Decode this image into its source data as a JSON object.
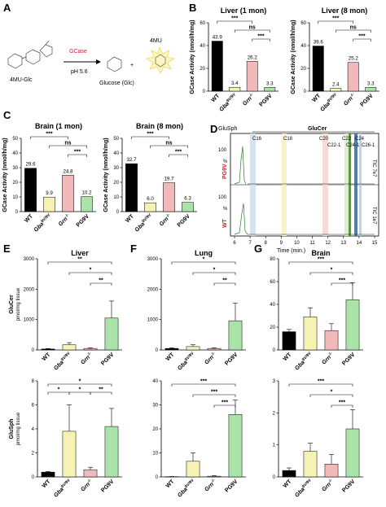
{
  "panels": {
    "A": {
      "letter": "A",
      "substrate": "4MU-Glc",
      "enzyme": "GCase",
      "condition": "pH 5.6",
      "product_glc": "Glucose (Glc)",
      "plus": "+",
      "product_4mu": "4MU"
    },
    "B": {
      "letter": "B"
    },
    "C": {
      "letter": "C"
    },
    "D": {
      "letter": "D",
      "header": "GluCer",
      "left_header": "GluSph",
      "row1_label": "PG9V",
      "row2_label": "WT",
      "ylabel_top": "100",
      "ylabel_bot": "100",
      "pct": "%",
      "tic1": "TIC 7e7",
      "tic2": "TIC 1e7",
      "xlabel": "Time (min.)",
      "peaks": [
        "C16",
        "C18",
        "C20",
        "C22-1",
        "C22",
        "C24-1",
        "C24",
        "C26-1"
      ],
      "ticks": [
        "6",
        "7",
        "8",
        "9",
        "10",
        "11",
        "12",
        "13",
        "14",
        "15"
      ]
    },
    "E": {
      "letter": "E"
    },
    "F": {
      "letter": "F"
    },
    "G": {
      "letter": "G"
    }
  },
  "colors": {
    "WT": "#000000",
    "GBA": "#f6f2b3",
    "GRN": "#f1b9b9",
    "PG9V": "#a9e3a7",
    "PG9V_text": "#d42020",
    "ann": "#111111"
  },
  "chart_data": [
    {
      "id": "B1",
      "type": "bar",
      "title": "Liver (1 mon)",
      "ylabel": "GCase Activity (nmol/h/mg)",
      "categories": [
        "WT",
        "Gba",
        "Grn",
        "PG9V"
      ],
      "values": [
        43.9,
        3.4,
        26.2,
        3.3
      ],
      "value_labels": [
        "43.9",
        "3.4",
        "26.2",
        "3.3"
      ],
      "ylim": [
        0,
        60
      ],
      "yticks": [
        "0",
        "20",
        "40",
        "60"
      ],
      "signif": [
        "***",
        "ns",
        "***"
      ]
    },
    {
      "id": "B2",
      "type": "bar",
      "title": "Liver (8 mon)",
      "ylabel": "GCase Activity (nmol/h/mg)",
      "categories": [
        "WT",
        "Gba",
        "Grn",
        "PG9V"
      ],
      "values": [
        39.6,
        2.4,
        25.2,
        3.3
      ],
      "value_labels": [
        "39.6",
        "2.4",
        "25.2",
        "3.3"
      ],
      "ylim": [
        0,
        60
      ],
      "yticks": [
        "0",
        "20",
        "40",
        "60"
      ],
      "signif": [
        "***",
        "ns",
        "***"
      ]
    },
    {
      "id": "C1",
      "type": "bar",
      "title": "Brain (1 mon)",
      "ylabel": "GCase Activity (nmol/h/mg)",
      "categories": [
        "WT",
        "Gba",
        "Grn",
        "PG9V"
      ],
      "values": [
        29.6,
        9.9,
        24.8,
        10.2
      ],
      "value_labels": [
        "29.6",
        "9.9",
        "24.8",
        "10.2"
      ],
      "ylim": [
        0,
        50
      ],
      "yticks": [
        "0",
        "10",
        "20",
        "30",
        "40",
        "50"
      ],
      "signif": [
        "***",
        "ns",
        "***"
      ]
    },
    {
      "id": "C2",
      "type": "bar",
      "title": "Brain (8 mon)",
      "ylabel": "GCase Activity (nmol/h/mg)",
      "categories": [
        "WT",
        "Gba",
        "Grn",
        "PG9V"
      ],
      "values": [
        32.7,
        6.0,
        19.7,
        6.3
      ],
      "value_labels": [
        "32.7",
        "6.0",
        "19.7",
        "6.3"
      ],
      "ylim": [
        0,
        50
      ],
      "yticks": [
        "0",
        "10",
        "20",
        "30",
        "40",
        "50"
      ],
      "signif": [
        "***",
        "ns",
        "***"
      ]
    },
    {
      "id": "E1",
      "type": "bar",
      "title": "Liver",
      "ylabel": "GluCer pmol/mg tissue",
      "categories": [
        "WT",
        "Gba",
        "Grn",
        "PG9V"
      ],
      "values": [
        30,
        170,
        50,
        1050
      ],
      "errors": [
        15,
        70,
        20,
        560
      ],
      "ylim": [
        0,
        3000
      ],
      "yticks": [
        "0",
        "1000",
        "2000",
        "3000"
      ],
      "signif": [
        "**",
        "*",
        "**"
      ]
    },
    {
      "id": "F1",
      "type": "bar",
      "title": "Lung",
      "ylabel": "",
      "categories": [
        "WT",
        "Gba",
        "Grn",
        "PG9V"
      ],
      "values": [
        50,
        110,
        50,
        960
      ],
      "errors": [
        20,
        60,
        20,
        580
      ],
      "ylim": [
        0,
        3000
      ],
      "yticks": [
        "0",
        "1000",
        "2000",
        "3000"
      ],
      "signif": [
        "*",
        "*",
        "**"
      ]
    },
    {
      "id": "G1",
      "type": "bar",
      "title": "Brain",
      "ylabel": "",
      "categories": [
        "WT",
        "Gba",
        "Grn",
        "PG9V"
      ],
      "values": [
        16,
        29,
        17,
        44
      ],
      "errors": [
        2,
        8,
        6,
        15
      ],
      "ylim": [
        0,
        80
      ],
      "yticks": [
        "0",
        "20",
        "40",
        "60",
        "80"
      ],
      "signif": [
        "***",
        "*",
        "***"
      ]
    },
    {
      "id": "E2",
      "type": "bar",
      "title": "",
      "ylabel": "GluSph pmol/mg tissue",
      "categories": [
        "WT",
        "Gba",
        "Grn",
        "PG9V"
      ],
      "values": [
        0.4,
        3.8,
        0.6,
        4.2
      ],
      "errors": [
        0.05,
        2.2,
        0.2,
        1.5
      ],
      "ylim": [
        0,
        8
      ],
      "yticks": [
        "0",
        "2",
        "4",
        "6",
        "8"
      ],
      "signif": [
        "*",
        "*",
        "*",
        "**",
        "*"
      ]
    },
    {
      "id": "F2",
      "type": "bar",
      "title": "",
      "ylabel": "",
      "categories": [
        "WT",
        "Gba",
        "Grn",
        "PG9V"
      ],
      "values": [
        0.1,
        6.5,
        0.3,
        26
      ],
      "errors": [
        0.05,
        3.5,
        0.2,
        6
      ],
      "ylim": [
        0,
        40
      ],
      "yticks": [
        "0",
        "10",
        "20",
        "30",
        "40"
      ],
      "signif": [
        "***",
        "***",
        "***"
      ]
    },
    {
      "id": "G2",
      "type": "bar",
      "title": "",
      "ylabel": "",
      "categories": [
        "WT",
        "Gba",
        "Grn",
        "PG9V"
      ],
      "values": [
        0.2,
        0.8,
        0.4,
        1.5
      ],
      "errors": [
        0.08,
        0.25,
        0.3,
        0.6
      ],
      "ylim": [
        0,
        3
      ],
      "yticks": [
        "0",
        "1",
        "2",
        "3"
      ],
      "signif": [
        "***",
        "*",
        "***"
      ]
    }
  ]
}
